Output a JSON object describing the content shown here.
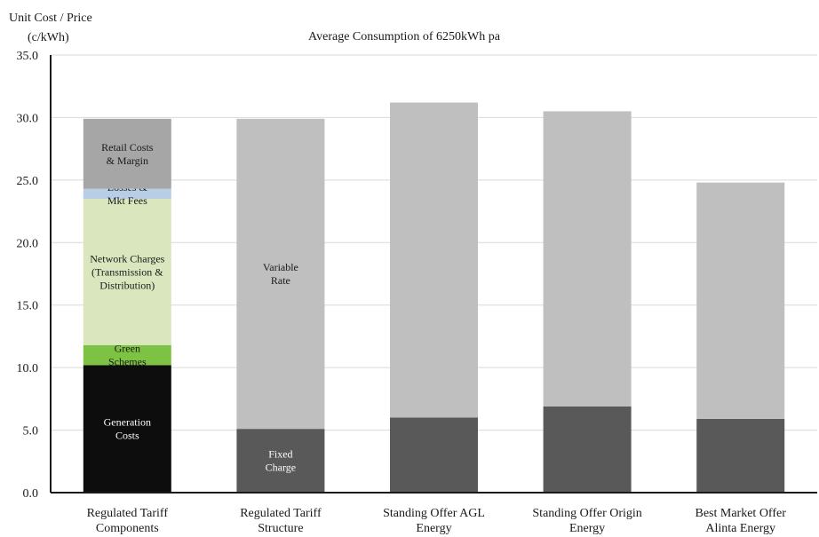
{
  "chart_data": {
    "type": "bar",
    "stacked": true,
    "title": "Average Consumption of 6250kWh pa",
    "ylabel_line1": "Unit Cost / Price",
    "ylabel_line2": "(c/kWh)",
    "ylim": [
      0,
      35
    ],
    "yticks": [
      "0.0",
      "5.0",
      "10.0",
      "15.0",
      "20.0",
      "25.0",
      "30.0",
      "35.0"
    ],
    "grid": true,
    "legend": "none",
    "categories": [
      [
        "Regulated Tariff",
        "Components"
      ],
      [
        "Regulated Tariff",
        "Structure"
      ],
      [
        "Standing Offer AGL",
        "Energy"
      ],
      [
        "Standing Offer Origin",
        "Energy"
      ],
      [
        "Best Market Offer",
        "Alinta Energy"
      ]
    ],
    "bars": [
      {
        "segments": [
          {
            "value": 10.2,
            "color": "#0d0d0d",
            "label": [
              "Generation",
              "Costs"
            ],
            "label_color": "#ffffff"
          },
          {
            "value": 1.6,
            "color": "#7dc242",
            "label": [
              "Green",
              "Schemes"
            ],
            "label_color": "#1a1a1a"
          },
          {
            "value": 11.7,
            "color": "#d9e6be",
            "label": [
              "Network Charges",
              "(Transmission  &",
              "Distribution)"
            ],
            "label_color": "#1a1a1a"
          },
          {
            "value": 0.8,
            "color": "#b8cde6",
            "label": [
              "Losses &",
              "Mkt Fees"
            ],
            "label_color": "#1a1a1a"
          },
          {
            "value": 5.6,
            "color": "#a6a6a6",
            "label": [
              "Retail Costs",
              "& Margin"
            ],
            "label_color": "#1a1a1a"
          }
        ]
      },
      {
        "segments": [
          {
            "value": 5.1,
            "color": "#595959",
            "label": [
              "Fixed",
              "Charge"
            ],
            "label_color": "#ffffff"
          },
          {
            "value": 24.8,
            "color": "#bfbfbf",
            "label": [
              "Variable",
              "Rate"
            ],
            "label_color": "#1a1a1a"
          }
        ]
      },
      {
        "segments": [
          {
            "value": 6.0,
            "color": "#595959",
            "label": [],
            "label_color": "#ffffff"
          },
          {
            "value": 25.2,
            "color": "#bfbfbf",
            "label": [],
            "label_color": "#1a1a1a"
          }
        ]
      },
      {
        "segments": [
          {
            "value": 6.9,
            "color": "#595959",
            "label": [],
            "label_color": "#ffffff"
          },
          {
            "value": 23.6,
            "color": "#bfbfbf",
            "label": [],
            "label_color": "#1a1a1a"
          }
        ]
      },
      {
        "segments": [
          {
            "value": 5.9,
            "color": "#595959",
            "label": [],
            "label_color": "#ffffff"
          },
          {
            "value": 18.9,
            "color": "#bfbfbf",
            "label": [],
            "label_color": "#1a1a1a"
          }
        ]
      }
    ]
  }
}
